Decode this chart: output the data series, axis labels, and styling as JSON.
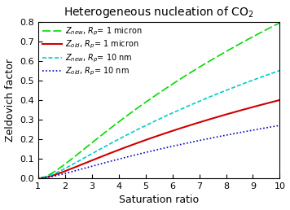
{
  "title": "Heterogeneous nucleation of CO$_2$",
  "xlabel": "Saturation ratio",
  "ylabel": "Zeldovich factor",
  "xlim": [
    1,
    10
  ],
  "ylim": [
    0,
    0.8
  ],
  "xticks": [
    1,
    2,
    3,
    4,
    5,
    6,
    7,
    8,
    9,
    10
  ],
  "yticks": [
    0.0,
    0.1,
    0.2,
    0.3,
    0.4,
    0.5,
    0.6,
    0.7,
    0.8
  ],
  "curves": [
    {
      "label": "$Z_{new}$, $R_p$= 1 micron",
      "color": "#00dd00",
      "a": 0.15,
      "b": 2.0,
      "lw": 1.2
    },
    {
      "label": "$Z_{old}$, $R_p$= 1 micron",
      "color": "#cc0000",
      "a": 0.0755,
      "b": 2.0,
      "lw": 1.5
    },
    {
      "label": "$Z_{new}$, $R_p$= 10 nm",
      "color": "#00cccc",
      "a": 0.104,
      "b": 2.0,
      "lw": 1.2
    },
    {
      "label": "$Z_{old}$, $R_p$= 10 nm",
      "color": "#0000bb",
      "a": 0.051,
      "b": 2.0,
      "lw": 1.2
    }
  ],
  "background_color": "#ffffff",
  "title_fontsize": 10,
  "axis_fontsize": 9,
  "tick_fontsize": 8,
  "legend_fontsize": 7
}
